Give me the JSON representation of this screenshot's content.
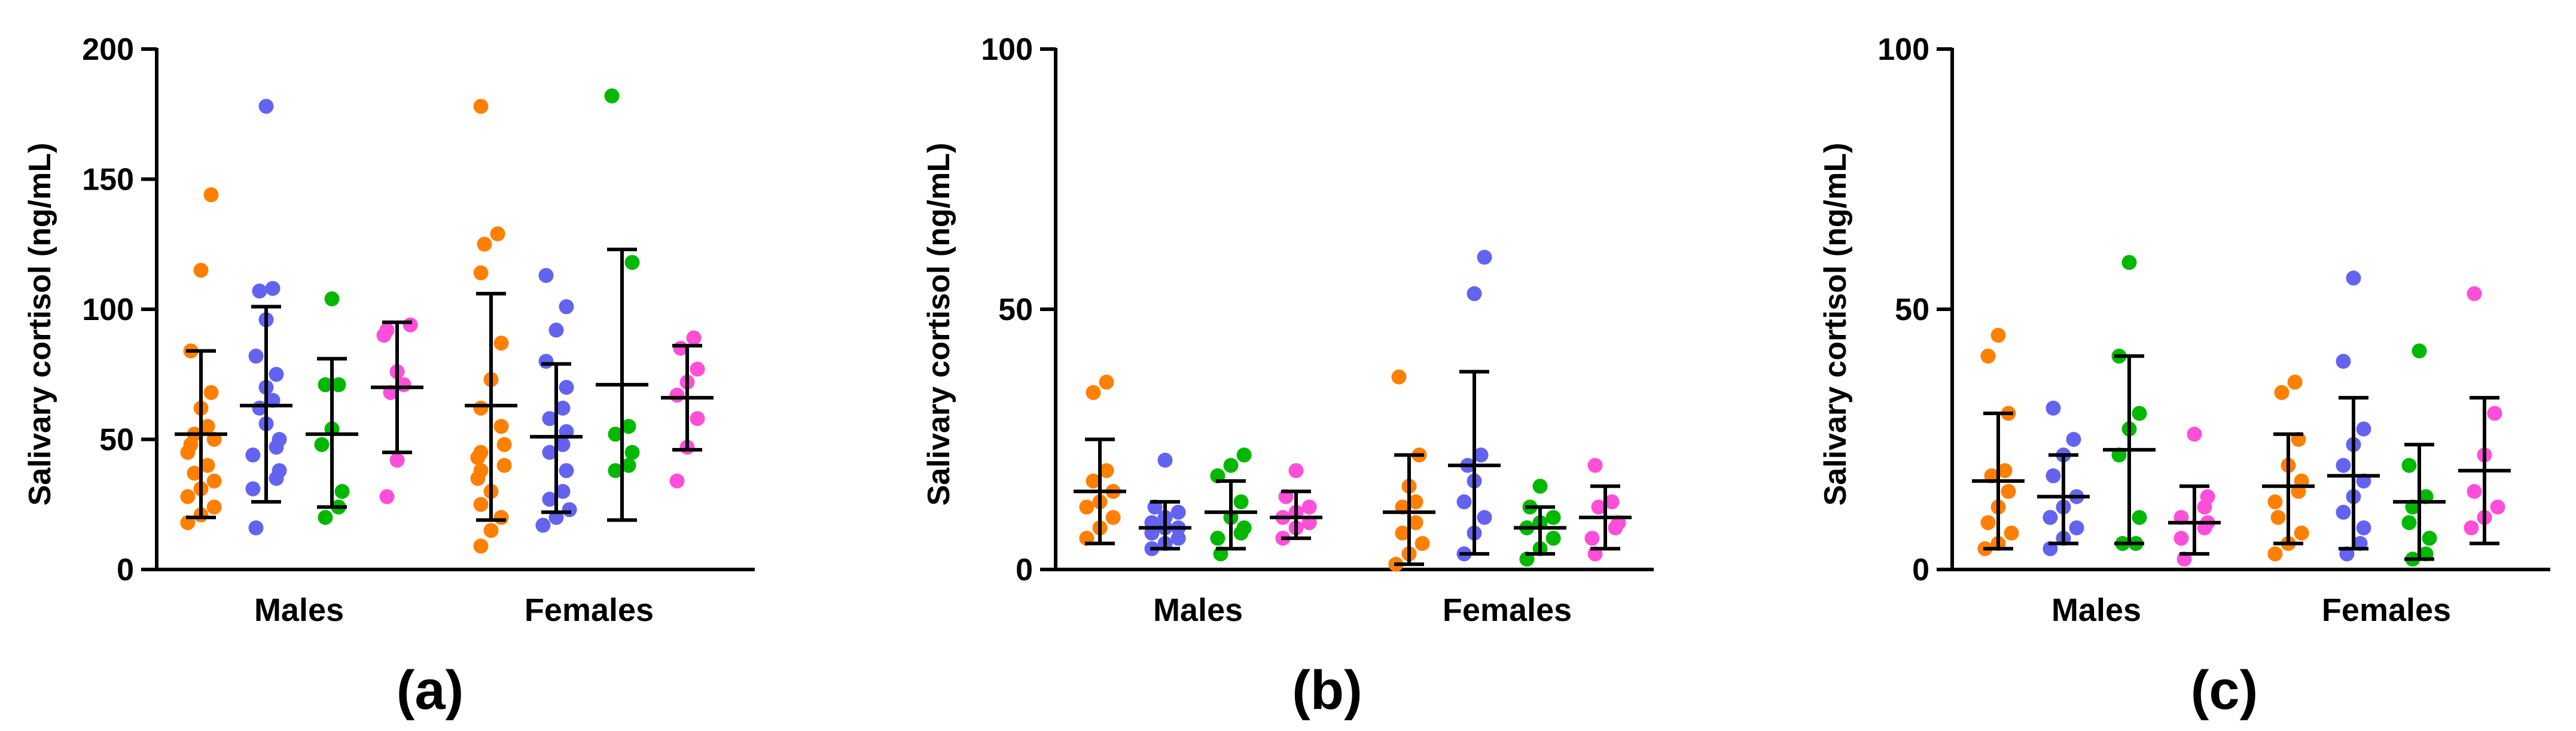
{
  "colors": {
    "group1": "#FF8000",
    "group2": "#6363F0",
    "group3": "#00B800",
    "group4": "#FF4FD8",
    "axis": "#000000"
  },
  "chart_data": [
    {
      "type": "scatter",
      "panel_label": "(a)",
      "ylabel": "Salivary cortisol (ng/mL)",
      "ylim": [
        0,
        200
      ],
      "yticks": [
        0,
        50,
        100,
        150,
        200
      ],
      "categories": [
        "Males",
        "Females"
      ],
      "series": [
        {
          "name": "group1",
          "color": "#FF8000",
          "values": {
            "Males": [
              144,
              115,
              84,
              68,
              62,
              55,
              52,
              50,
              48,
              45,
              40,
              37,
              34,
              31,
              28,
              24,
              21,
              18
            ],
            "Females": [
              178,
              129,
              125,
              114,
              87,
              73,
              62,
              55,
              48,
              45,
              43,
              40,
              38,
              35,
              30,
              25,
              20,
              15,
              9
            ]
          },
          "mean": {
            "Males": 52,
            "Females": 63
          },
          "sd_range": {
            "Males": [
              20,
              84
            ],
            "Females": [
              19,
              106
            ]
          }
        },
        {
          "name": "group2",
          "color": "#6363F0",
          "values": {
            "Males": [
              178,
              108,
              107,
              96,
              82,
              75,
              70,
              65,
              62,
              56,
              50,
              47,
              44,
              38,
              35,
              31,
              16
            ],
            "Females": [
              113,
              101,
              92,
              80,
              70,
              62,
              58,
              53,
              48,
              45,
              38,
              30,
              27,
              23,
              20,
              17
            ]
          },
          "mean": {
            "Males": 63,
            "Females": 51
          },
          "sd_range": {
            "Males": [
              26,
              101
            ],
            "Females": [
              22,
              79
            ]
          }
        },
        {
          "name": "group3",
          "color": "#00B800",
          "values": {
            "Males": [
              104,
              71,
              71,
              54,
              48,
              30,
              24,
              20
            ],
            "Females": [
              182,
              118,
              55,
              52,
              45,
              40,
              38
            ]
          },
          "mean": {
            "Males": 52,
            "Females": 71
          },
          "sd_range": {
            "Males": [
              24,
              81
            ],
            "Females": [
              19,
              123
            ]
          }
        },
        {
          "name": "group4",
          "color": "#FF4FD8",
          "values": {
            "Males": [
              94,
              92,
              90,
              76,
              71,
              68,
              42,
              28
            ],
            "Females": [
              89,
              85,
              77,
              72,
              67,
              58,
              47,
              34
            ]
          },
          "mean": {
            "Males": 70,
            "Females": 66
          },
          "sd_range": {
            "Males": [
              45,
              95
            ],
            "Females": [
              46,
              86
            ]
          }
        }
      ]
    },
    {
      "type": "scatter",
      "panel_label": "(b)",
      "ylabel": "Salivary cortisol (ng/mL)",
      "ylim": [
        0,
        100
      ],
      "yticks": [
        0,
        50,
        100
      ],
      "categories": [
        "Males",
        "Females"
      ],
      "series": [
        {
          "name": "group1",
          "color": "#FF8000",
          "values": {
            "Males": [
              36,
              34,
              19,
              17,
              15,
              13,
              12,
              10,
              8,
              6
            ],
            "Females": [
              37,
              22,
              16,
              13,
              12,
              9,
              7,
              5,
              3,
              1
            ]
          },
          "mean": {
            "Males": 15,
            "Females": 11
          },
          "sd_range": {
            "Males": [
              5,
              25
            ],
            "Females": [
              1,
              22
            ]
          }
        },
        {
          "name": "group2",
          "color": "#6363F0",
          "values": {
            "Males": [
              21,
              12,
              11,
              10,
              9,
              8,
              8,
              7,
              6,
              5,
              4
            ],
            "Females": [
              60,
              53,
              22,
              20,
              17,
              13,
              10,
              7,
              3
            ]
          },
          "mean": {
            "Males": 8,
            "Females": 20
          },
          "sd_range": {
            "Males": [
              4,
              13
            ],
            "Females": [
              3,
              38
            ]
          }
        },
        {
          "name": "group3",
          "color": "#00B800",
          "values": {
            "Males": [
              22,
              20,
              18,
              13,
              10,
              8,
              7,
              6,
              3
            ],
            "Females": [
              16,
              12,
              10,
              9,
              8,
              6,
              4,
              2
            ]
          },
          "mean": {
            "Males": 11,
            "Females": 8
          },
          "sd_range": {
            "Males": [
              4,
              17
            ],
            "Females": [
              3,
              12
            ]
          }
        },
        {
          "name": "group4",
          "color": "#FF4FD8",
          "values": {
            "Males": [
              19,
              14,
              12,
              11,
              10,
              9,
              8,
              6
            ],
            "Females": [
              20,
              13,
              12,
              9,
              8,
              6,
              3
            ]
          },
          "mean": {
            "Males": 10,
            "Females": 10
          },
          "sd_range": {
            "Males": [
              6,
              15
            ],
            "Females": [
              4,
              16
            ]
          }
        }
      ]
    },
    {
      "type": "scatter",
      "panel_label": "(c)",
      "ylabel": "Salivary cortisol (ng/mL)",
      "ylim": [
        0,
        100
      ],
      "yticks": [
        0,
        50,
        100
      ],
      "categories": [
        "Males",
        "Females"
      ],
      "series": [
        {
          "name": "group1",
          "color": "#FF8000",
          "values": {
            "Males": [
              45,
              41,
              30,
              19,
              18,
              15,
              12,
              9,
              7,
              5,
              4
            ],
            "Females": [
              36,
              34,
              25,
              20,
              17,
              15,
              13,
              10,
              7,
              5,
              3
            ]
          },
          "mean": {
            "Males": 17,
            "Females": 16
          },
          "sd_range": {
            "Males": [
              4,
              30
            ],
            "Females": [
              5,
              26
            ]
          }
        },
        {
          "name": "group2",
          "color": "#6363F0",
          "values": {
            "Males": [
              31,
              25,
              22,
              18,
              14,
              12,
              10,
              8,
              6,
              4
            ],
            "Females": [
              56,
              40,
              27,
              24,
              20,
              17,
              14,
              11,
              8,
              5,
              3
            ]
          },
          "mean": {
            "Males": 14,
            "Females": 18
          },
          "sd_range": {
            "Males": [
              5,
              22
            ],
            "Females": [
              4,
              33
            ]
          }
        },
        {
          "name": "group3",
          "color": "#00B800",
          "values": {
            "Males": [
              59,
              41,
              30,
              27,
              22,
              10,
              5,
              5
            ],
            "Females": [
              42,
              20,
              14,
              12,
              9,
              6,
              3,
              2
            ]
          },
          "mean": {
            "Males": 23,
            "Females": 13
          },
          "sd_range": {
            "Males": [
              5,
              41
            ],
            "Females": [
              2,
              24
            ]
          }
        },
        {
          "name": "group4",
          "color": "#FF4FD8",
          "values": {
            "Males": [
              26,
              14,
              12,
              10,
              9,
              8,
              6,
              2
            ],
            "Females": [
              53,
              30,
              22,
              15,
              12,
              10,
              8
            ]
          },
          "mean": {
            "Males": 9,
            "Females": 19
          },
          "sd_range": {
            "Males": [
              3,
              16
            ],
            "Females": [
              5,
              33
            ]
          }
        }
      ]
    }
  ]
}
